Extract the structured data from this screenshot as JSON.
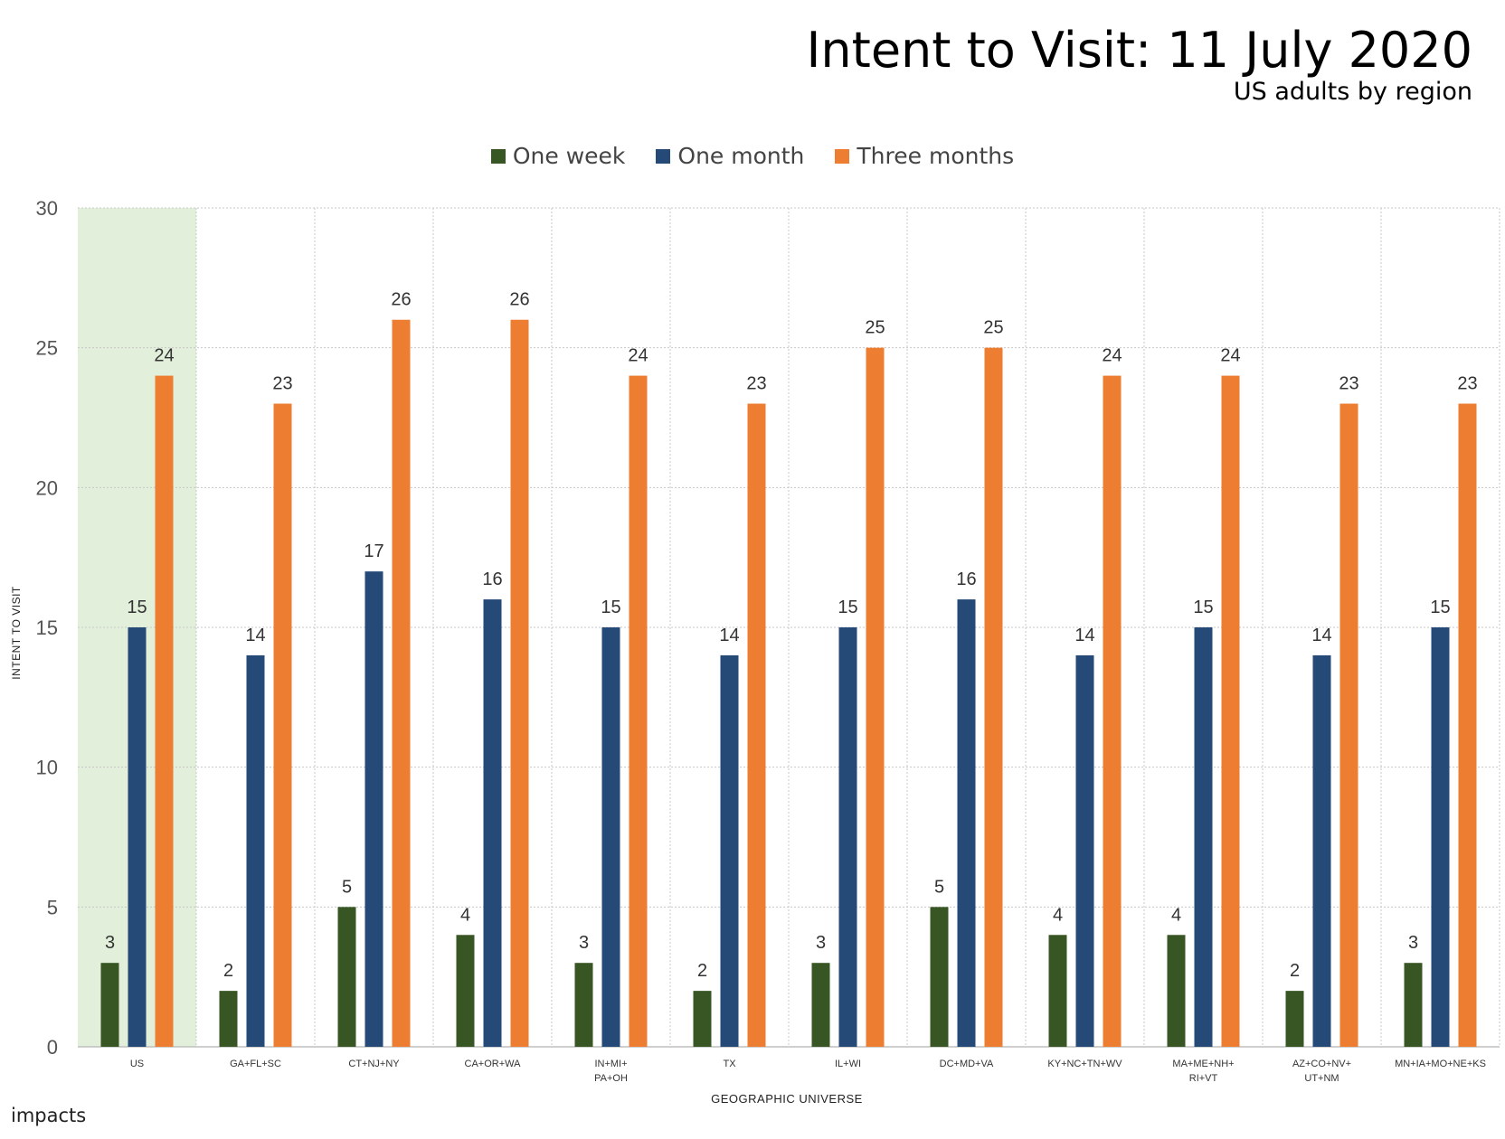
{
  "brand": "impacts",
  "chart_data": {
    "type": "bar",
    "title": "Intent to Visit: 11 July 2020",
    "subtitle": "US adults by region",
    "xlabel": "GEOGRAPHIC UNIVERSE",
    "ylabel": "INTENT TO VISIT",
    "ylim": [
      0,
      30
    ],
    "yticks": [
      0,
      5,
      10,
      15,
      20,
      25,
      30
    ],
    "grid": true,
    "legend_position": "top-center",
    "highlighted_category": "US",
    "highlight_color": "#e2efda",
    "categories": [
      "US",
      "GA+FL+SC",
      "CT+NJ+NY",
      "CA+OR+WA",
      "IN+MI+ PA+OH",
      "TX",
      "IL+WI",
      "DC+MD+VA",
      "KY+NC+TN+WV",
      "MA+ME+NH+ RI+VT",
      "AZ+CO+NV+ UT+NM",
      "MN+IA+MO+NE+KS"
    ],
    "category_lines": [
      [
        "US"
      ],
      [
        "GA+FL+SC"
      ],
      [
        "CT+NJ+NY"
      ],
      [
        "CA+OR+WA"
      ],
      [
        "IN+MI+",
        "PA+OH"
      ],
      [
        "TX"
      ],
      [
        "IL+WI"
      ],
      [
        "DC+MD+VA"
      ],
      [
        "KY+NC+TN+WV"
      ],
      [
        "MA+ME+NH+",
        "RI+VT"
      ],
      [
        "AZ+CO+NV+",
        "UT+NM"
      ],
      [
        "MN+IA+MO+NE+KS"
      ]
    ],
    "series": [
      {
        "name": "One week",
        "color": "#375623",
        "values": [
          3,
          2,
          5,
          4,
          3,
          2,
          3,
          5,
          4,
          4,
          2,
          3
        ]
      },
      {
        "name": "One month",
        "color": "#264a78",
        "values": [
          15,
          14,
          17,
          16,
          15,
          14,
          15,
          16,
          14,
          15,
          14,
          15
        ]
      },
      {
        "name": "Three months",
        "color": "#ed7d31",
        "values": [
          24,
          23,
          26,
          26,
          24,
          23,
          25,
          25,
          24,
          24,
          23,
          23
        ]
      }
    ]
  }
}
